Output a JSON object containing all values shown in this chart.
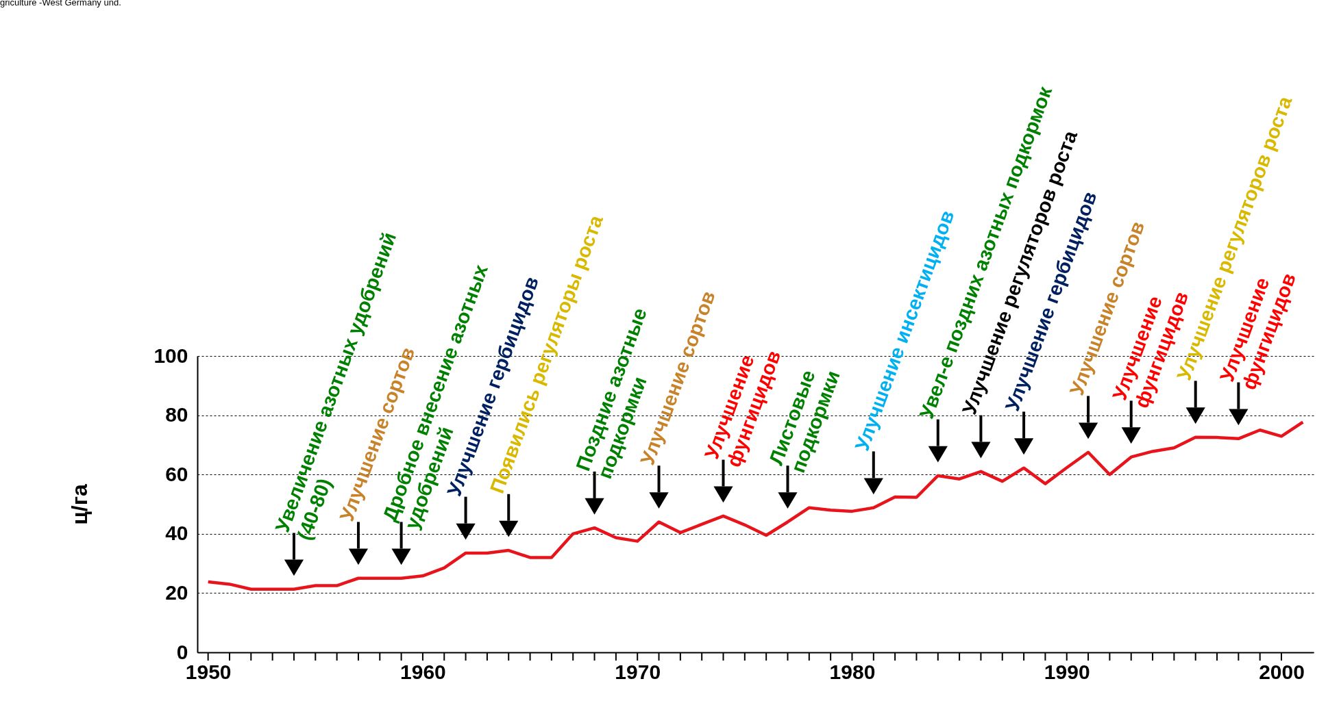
{
  "chart_data": {
    "type": "line",
    "ylabel": "ц/га",
    "x": [
      1950,
      1951,
      1952,
      1953,
      1954,
      1955,
      1956,
      1957,
      1958,
      1959,
      1960,
      1961,
      1962,
      1963,
      1964,
      1965,
      1966,
      1967,
      1968,
      1969,
      1970,
      1971,
      1972,
      1973,
      1974,
      1975,
      1976,
      1977,
      1978,
      1979,
      1980,
      1981,
      1982,
      1983,
      1984,
      1985,
      1986,
      1987,
      1988,
      1989,
      1990,
      1991,
      1992,
      1993,
      1994,
      1995,
      1996,
      1997,
      1998,
      1999,
      2000,
      2001
    ],
    "series": [
      {
        "color": "#e8141b",
        "values": [
          23.8,
          23,
          21.3,
          21.3,
          21.3,
          22.5,
          22.5,
          25,
          25,
          25,
          25.8,
          28.5,
          33.5,
          33.5,
          34.4,
          32,
          32,
          40,
          42,
          38.7,
          37.5,
          44,
          40.4,
          43.2,
          46,
          43,
          39.5,
          44,
          48.8,
          48,
          47.6,
          48.8,
          52.4,
          52.3,
          59.6,
          58.5,
          61,
          57.7,
          62.2,
          56.9,
          62.3,
          67.5,
          60,
          65.9,
          67.8,
          69,
          72.6,
          72.5,
          72.1,
          75,
          72.9,
          77.7
        ]
      }
    ],
    "xlim": [
      1949.5,
      2001.5
    ],
    "xticks": [
      1950,
      {
        "value": 1951,
        "label": null
      },
      {
        "value": 1952,
        "label": null
      },
      {
        "value": 1953,
        "label": null
      },
      {
        "value": 1954,
        "label": null
      },
      {
        "value": 1955,
        "label": null
      },
      {
        "value": 1956,
        "label": null
      },
      {
        "value": 1957,
        "label": null
      },
      {
        "value": 1958,
        "label": null
      },
      {
        "value": 1959,
        "label": null
      },
      1960,
      {
        "value": 1961,
        "label": null
      },
      {
        "value": 1962,
        "label": null
      },
      {
        "value": 1963,
        "label": null
      },
      {
        "value": 1964,
        "label": null
      },
      {
        "value": 1965,
        "label": null
      },
      {
        "value": 1966,
        "label": null
      },
      {
        "value": 1967,
        "label": null
      },
      {
        "value": 1968,
        "label": null
      },
      {
        "value": 1969,
        "label": null
      },
      1970,
      {
        "value": 1971,
        "label": null
      },
      {
        "value": 1972,
        "label": null
      },
      {
        "value": 1973,
        "label": null
      },
      {
        "value": 1974,
        "label": null
      },
      {
        "value": 1975,
        "label": null
      },
      {
        "value": 1976,
        "label": null
      },
      {
        "value": 1977,
        "label": null
      },
      {
        "value": 1978,
        "label": null
      },
      {
        "value": 1979,
        "label": null
      },
      1980,
      {
        "value": 1981,
        "label": null
      },
      {
        "value": 1982,
        "label": null
      },
      {
        "value": 1983,
        "label": null
      },
      {
        "value": 1984,
        "label": null
      },
      {
        "value": 1985,
        "label": null
      },
      {
        "value": 1986,
        "label": null
      },
      {
        "value": 1987,
        "label": null
      },
      {
        "value": 1988,
        "label": null
      },
      {
        "value": 1989,
        "label": null
      },
      1990,
      {
        "value": 1991,
        "label": null
      },
      {
        "value": 1992,
        "label": null
      },
      {
        "value": 1993,
        "label": null
      },
      {
        "value": 1994,
        "label": null
      },
      {
        "value": 1995,
        "label": null
      },
      {
        "value": 1996,
        "label": null
      },
      {
        "value": 1997,
        "label": null
      },
      {
        "value": 1998,
        "label": null
      },
      {
        "value": 1999,
        "label": null
      },
      2000
    ],
    "ylim": [
      0,
      100
    ],
    "yticks": [
      0,
      20,
      40,
      60,
      80,
      100
    ],
    "grid": "y",
    "line_style": "solid",
    "marker": "none",
    "annotations": [
      "griculture -West Germany und.",
      {
        "text": "Увеличение азотных удобрений\n(40-80)",
        "x": 1954,
        "y": 21.3
      },
      {
        "text": "Улучшение сортов",
        "x": 1957,
        "y": 25
      },
      {
        "text": "Дробное внесение азотных\nудобрений",
        "x": 1959,
        "y": 25
      },
      {
        "text": "Улучшение гербицидов",
        "x": 1962,
        "y": 33.5
      },
      {
        "text": "Появились регуляторы роста",
        "x": 1964,
        "y": 34.4
      },
      {
        "text": "Поздние азотные\nподкормки",
        "x": 1968,
        "y": 42
      },
      {
        "text": "Улучшение сортов",
        "x": 1971,
        "y": 44
      },
      {
        "text": "Улучшение\nфунгицидов",
        "x": 1974,
        "y": 46
      },
      {
        "text": "Листовые\nподкормки",
        "x": 1977,
        "y": 44
      },
      {
        "text": "Улучшение инсектицидов",
        "x": 1981,
        "y": 48.8
      },
      {
        "text": "Увел-е поздних азотных подкормок",
        "x": 1984,
        "y": 59.6
      },
      {
        "text": "Улучшение регуляторов роста",
        "x": 1986,
        "y": 61
      },
      {
        "text": "Улучшение гербицидов",
        "x": 1988,
        "y": 62.2
      },
      {
        "text": "Улучшение сортов",
        "x": 1991,
        "y": 67.5
      },
      {
        "text": "Улучшение\nфунгицидов",
        "x": 1993,
        "y": 65.9
      },
      {
        "text": "Улучшение регуляторов роста",
        "x": 1996,
        "y": 72.6
      },
      {
        "text": "Улучшение\nфунгицидов",
        "x": 1998,
        "y": 72.1
      }
    ]
  }
}
